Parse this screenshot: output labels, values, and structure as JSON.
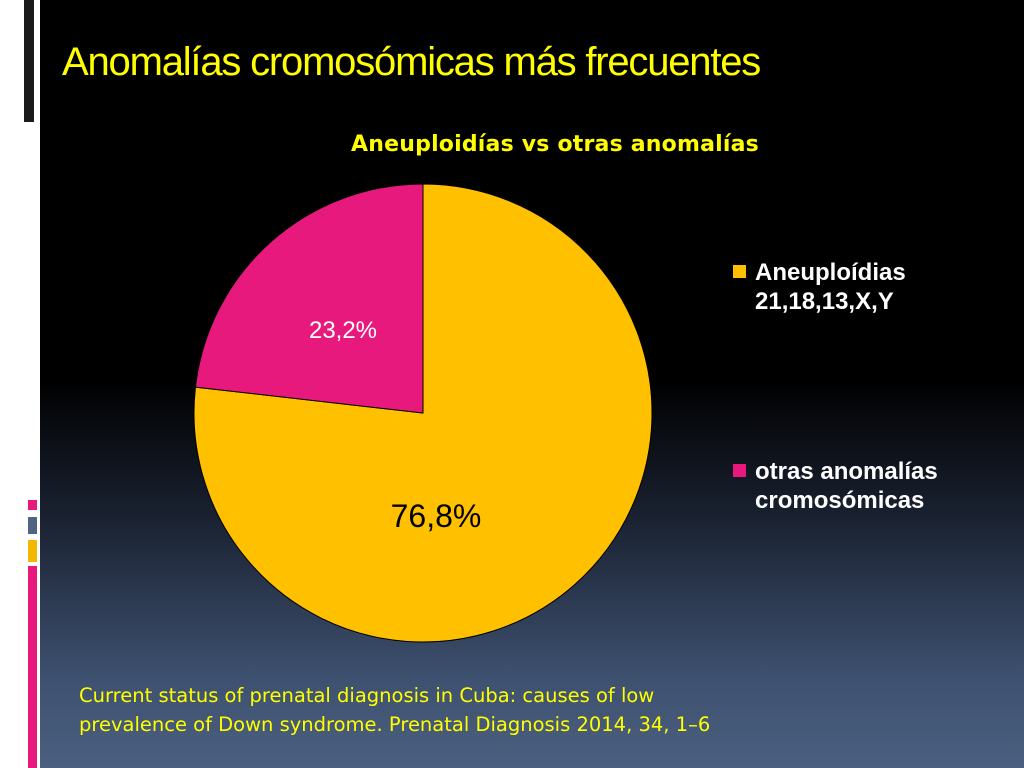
{
  "slide": {
    "title": "Anomalías cromosómicas más frecuentes",
    "citation_line1": "Current status of prenatal diagnosis in Cuba: causes of low",
    "citation_line2": "prevalence of Down syndrome. Prenatal Diagnosis 2014, 34, 1–6"
  },
  "colors": {
    "title": "#ffff00",
    "background_top": "#000000",
    "background_bottom": "#4b5f80",
    "accent_pink": "#e8197d",
    "accent_gold": "#f5b800"
  },
  "chart_data": {
    "type": "pie",
    "title": "Aneuploidías vs otras anomalías",
    "legend_position": "right",
    "start": "12 o'clock, clockwise",
    "slices": [
      {
        "label": "Aneuploídias 21,18,13,X,Y",
        "value": 76.8,
        "value_label": "76,8%",
        "color": "#ffc000",
        "label_color": "#000000"
      },
      {
        "label": "otras anomalías cromosómicas",
        "value": 23.2,
        "value_label": "23,2%",
        "color": "#e8197d",
        "label_color": "#ffffff"
      }
    ]
  }
}
